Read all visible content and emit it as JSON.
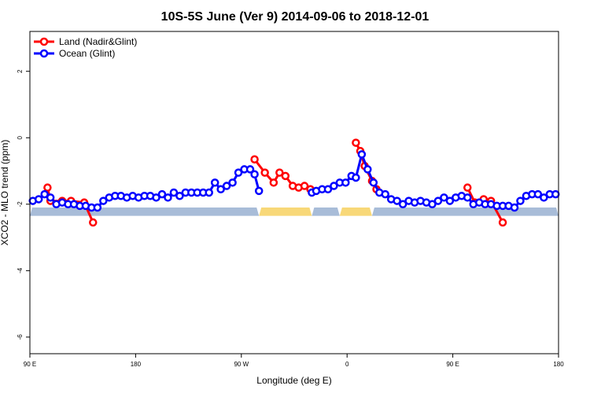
{
  "chart_data": {
    "type": "line",
    "title": "10S-5S June (Ver 9)   2014-09-06 to 2018-12-01",
    "xlabel": "Longitude (deg E)",
    "ylabel": "XCO2 - MLO trend (ppm)",
    "xlim": [
      90,
      450
    ],
    "ylim": [
      -6.5,
      3.2
    ],
    "x_ticks": [
      {
        "value": 90,
        "label": "90 E"
      },
      {
        "value": 162,
        "label": "180"
      },
      {
        "value": 234,
        "label": "90 W"
      },
      {
        "value": 306,
        "label": "0"
      },
      {
        "value": 378,
        "label": "90 E"
      },
      {
        "value": 450,
        "label": "180"
      }
    ],
    "y_ticks": [
      {
        "value": -6,
        "label": "-6"
      },
      {
        "value": -4,
        "label": "-4"
      },
      {
        "value": -2,
        "label": "-2"
      },
      {
        "value": 0,
        "label": "0"
      },
      {
        "value": 2,
        "label": "2"
      }
    ],
    "grid": false,
    "legend_position": "top-left",
    "surface_band": {
      "y_range": [
        -2.35,
        -2.1
      ],
      "segments": [
        {
          "x0": 90,
          "x0_end": 246,
          "type": "ocean",
          "color": "#a8bcd8"
        },
        {
          "x0": 246,
          "x0_end": 282,
          "type": "land",
          "color": "#f8d878"
        },
        {
          "x0": 282,
          "x0_end": 301,
          "type": "ocean",
          "color": "#a8bcd8"
        },
        {
          "x0": 301,
          "x0_end": 323,
          "type": "land",
          "color": "#f8d878"
        },
        {
          "x0": 323,
          "x0_end": 450,
          "type": "ocean",
          "color": "#a8bcd8"
        }
      ]
    },
    "series": [
      {
        "name": "Land (Nadir&Glint)",
        "color": "#ff0000",
        "x": [
          102,
          104,
          112,
          118,
          127,
          133,
          243,
          250,
          256,
          260,
          264,
          269,
          273,
          277,
          281,
          312,
          315,
          318,
          323,
          326,
          388,
          393,
          399,
          404,
          412
        ],
        "y": [
          -1.5,
          -1.9,
          -1.9,
          -1.9,
          -1.95,
          -2.55,
          -0.65,
          -1.05,
          -1.35,
          -1.05,
          -1.15,
          -1.45,
          -1.5,
          -1.45,
          -1.55,
          -0.15,
          -0.4,
          -0.85,
          -1.3,
          -1.55,
          -1.5,
          -1.95,
          -1.85,
          -1.9,
          -2.55
        ]
      },
      {
        "name": "Ocean (Glint)",
        "color": "#0000ff",
        "x": [
          92,
          96,
          100,
          104,
          108,
          112,
          116,
          120,
          124,
          128,
          132,
          136,
          140,
          144,
          148,
          152,
          156,
          160,
          164,
          168,
          172,
          176,
          180,
          184,
          188,
          192,
          196,
          200,
          204,
          208,
          212,
          216,
          220,
          224,
          228,
          232,
          236,
          240,
          243,
          246,
          282,
          285,
          289,
          293,
          297,
          301,
          305,
          309,
          312,
          316,
          320,
          324,
          328,
          332,
          336,
          340,
          344,
          348,
          352,
          356,
          360,
          364,
          368,
          372,
          376,
          380,
          384,
          388,
          392,
          396,
          400,
          404,
          408,
          412,
          416,
          420,
          424,
          428,
          432,
          436,
          440,
          444,
          448
        ],
        "y": [
          -1.9,
          -1.85,
          -1.7,
          -1.8,
          -2.0,
          -1.95,
          -2.0,
          -2.0,
          -2.05,
          -2.05,
          -2.1,
          -2.1,
          -1.9,
          -1.8,
          -1.75,
          -1.75,
          -1.8,
          -1.75,
          -1.8,
          -1.75,
          -1.75,
          -1.8,
          -1.7,
          -1.8,
          -1.65,
          -1.75,
          -1.65,
          -1.65,
          -1.65,
          -1.65,
          -1.65,
          -1.35,
          -1.55,
          -1.45,
          -1.35,
          -1.05,
          -0.95,
          -0.95,
          -1.1,
          -1.6,
          -1.65,
          -1.6,
          -1.55,
          -1.55,
          -1.45,
          -1.35,
          -1.35,
          -1.15,
          -1.2,
          -0.5,
          -0.95,
          -1.35,
          -1.65,
          -1.7,
          -1.85,
          -1.9,
          -2.0,
          -1.9,
          -1.95,
          -1.9,
          -1.95,
          -2.0,
          -1.9,
          -1.8,
          -1.9,
          -1.8,
          -1.75,
          -1.8,
          -2.0,
          -1.95,
          -2.0,
          -2.0,
          -2.05,
          -2.05,
          -2.05,
          -2.1,
          -1.9,
          -1.75,
          -1.7,
          -1.7,
          -1.8,
          -1.7,
          -1.7
        ]
      }
    ]
  }
}
